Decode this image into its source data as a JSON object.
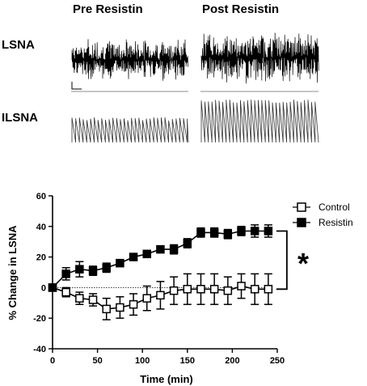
{
  "traces": {
    "headers": [
      "Pre Resistin",
      "Post Resistin"
    ],
    "row_labels": [
      "LSNA",
      "ILSNA"
    ]
  },
  "chart_data": {
    "type": "line",
    "title": "",
    "xlabel": "Time (min)",
    "ylabel": "% Change in LSNA",
    "xlim": [
      0,
      250
    ],
    "ylim": [
      -40,
      60
    ],
    "xticks": [
      0,
      50,
      100,
      150,
      200,
      250
    ],
    "yticks": [
      -40,
      -20,
      0,
      20,
      40,
      60
    ],
    "grid": false,
    "legend_position": "right",
    "annotation": "*",
    "x": [
      0,
      15,
      30,
      45,
      60,
      75,
      90,
      105,
      120,
      135,
      150,
      165,
      180,
      195,
      210,
      225,
      240
    ],
    "series": [
      {
        "name": "Control",
        "marker": "open-square",
        "values": [
          0,
          -3,
          -7,
          -8,
          -14,
          -13,
          -11,
          -7,
          -5,
          -2,
          -1,
          -1,
          -1,
          -2,
          1,
          -1,
          -1
        ],
        "errors": [
          1,
          3,
          4,
          4,
          7,
          7,
          7,
          8,
          9,
          9,
          10,
          10,
          10,
          9,
          8,
          10,
          10
        ]
      },
      {
        "name": "Resistin",
        "marker": "filled-square",
        "values": [
          0,
          9,
          12,
          11,
          13,
          16,
          20,
          22,
          25,
          25,
          29,
          36,
          36,
          35,
          37,
          37,
          37
        ],
        "errors": [
          1,
          4,
          5,
          3,
          3,
          2,
          2,
          2,
          2,
          3,
          3,
          3,
          3,
          3,
          3,
          4,
          4
        ]
      }
    ]
  }
}
